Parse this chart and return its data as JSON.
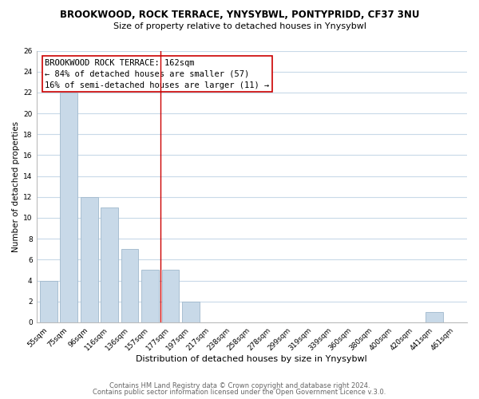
{
  "title": "BROOKWOOD, ROCK TERRACE, YNYSYBWL, PONTYPRIDD, CF37 3NU",
  "subtitle": "Size of property relative to detached houses in Ynysybwl",
  "xlabel": "Distribution of detached houses by size in Ynysybwl",
  "ylabel": "Number of detached properties",
  "bar_labels": [
    "55sqm",
    "75sqm",
    "96sqm",
    "116sqm",
    "136sqm",
    "157sqm",
    "177sqm",
    "197sqm",
    "217sqm",
    "238sqm",
    "258sqm",
    "278sqm",
    "299sqm",
    "319sqm",
    "339sqm",
    "360sqm",
    "380sqm",
    "400sqm",
    "420sqm",
    "441sqm",
    "461sqm"
  ],
  "bar_heights": [
    4,
    22,
    12,
    11,
    7,
    5,
    5,
    2,
    0,
    0,
    0,
    0,
    0,
    0,
    0,
    0,
    0,
    0,
    0,
    1,
    0
  ],
  "bar_color": "#c8d9e8",
  "bar_edge_color": "#a0b8cc",
  "vline_x": 5.5,
  "vline_color": "#cc0000",
  "annotation_title": "BROOKWOOD ROCK TERRACE: 162sqm",
  "annotation_line1": "← 84% of detached houses are smaller (57)",
  "annotation_line2": "16% of semi-detached houses are larger (11) →",
  "annotation_box_color": "#ffffff",
  "annotation_box_edge_color": "#cc0000",
  "ylim": [
    0,
    26
  ],
  "yticks": [
    0,
    2,
    4,
    6,
    8,
    10,
    12,
    14,
    16,
    18,
    20,
    22,
    24,
    26
  ],
  "footer1": "Contains HM Land Registry data © Crown copyright and database right 2024.",
  "footer2": "Contains public sector information licensed under the Open Government Licence v.3.0.",
  "background_color": "#ffffff",
  "grid_color": "#c8d9e8",
  "title_fontsize": 8.5,
  "subtitle_fontsize": 8,
  "xlabel_fontsize": 8,
  "ylabel_fontsize": 7.5,
  "tick_fontsize": 6.5,
  "annotation_fontsize": 7.5,
  "footer_fontsize": 6
}
